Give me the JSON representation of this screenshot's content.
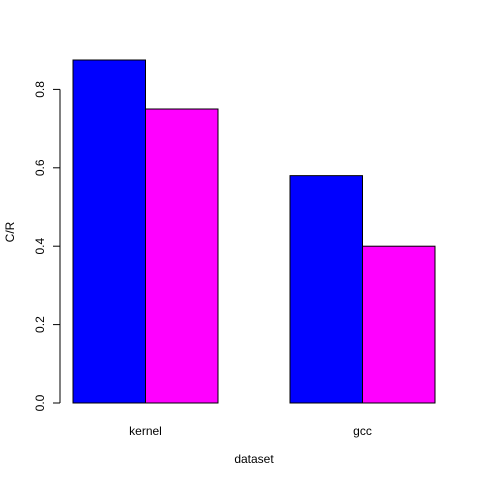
{
  "chart_data": {
    "type": "bar",
    "categories": [
      "kernel",
      "gcc"
    ],
    "series": [
      {
        "values": [
          0.875,
          0.58
        ],
        "color": "#0000ff"
      },
      {
        "values": [
          0.75,
          0.4
        ],
        "color": "#ff00ff"
      }
    ],
    "xlabel": "dataset",
    "ylabel": "C/R",
    "ylim": [
      0,
      0.875
    ],
    "yticks": [
      "0.0",
      "0.2",
      "0.4",
      "0.6",
      "0.8"
    ],
    "grid": false,
    "legend": "none"
  }
}
